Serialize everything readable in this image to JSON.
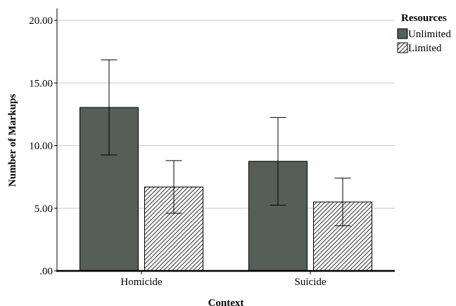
{
  "chart_data": {
    "type": "bar",
    "xlabel": "Context",
    "ylabel": "Number of Markups",
    "categories": [
      "Homicide",
      "Suicide"
    ],
    "ylim": [
      0,
      20
    ],
    "yticks": [
      ".00",
      "5.00",
      "10.00",
      "15.00",
      "20.00"
    ],
    "ytick_values": [
      0,
      5,
      10,
      15,
      20
    ],
    "grid": true,
    "legend": {
      "title": "Resources",
      "position": "top-right"
    },
    "series": [
      {
        "name": "Unlimited",
        "values": [
          13.05,
          8.75
        ],
        "err_low": [
          9.25,
          5.25
        ],
        "err_high": [
          16.85,
          12.25
        ],
        "color": "#555e58",
        "pattern": "solid"
      },
      {
        "name": "Limited",
        "values": [
          6.7,
          5.5
        ],
        "err_low": [
          4.6,
          3.6
        ],
        "err_high": [
          8.8,
          7.4
        ],
        "color": "#ffffff",
        "pattern": "diagonal-hatch"
      }
    ]
  }
}
